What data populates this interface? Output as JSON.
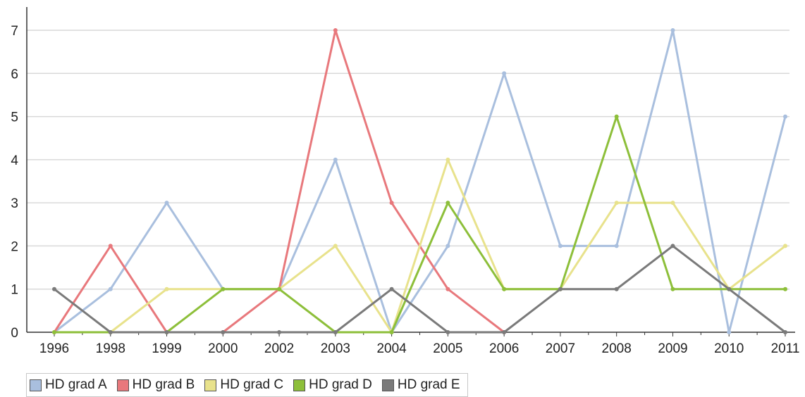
{
  "chart_data": {
    "type": "line",
    "categories": [
      "1996",
      "1998",
      "1999",
      "2000",
      "2002",
      "2003",
      "2004",
      "2005",
      "2006",
      "2007",
      "2008",
      "2009",
      "2010",
      "2011"
    ],
    "ylim": [
      0,
      7
    ],
    "yticks": [
      0,
      1,
      2,
      3,
      4,
      5,
      6,
      7
    ],
    "grid": true,
    "legend_position": "bottom-left",
    "series": [
      {
        "name": "HD grad A",
        "color": "#a9bfde",
        "values": [
          0,
          1,
          3,
          1,
          1,
          4,
          0,
          2,
          6,
          2,
          2,
          7,
          0,
          5
        ]
      },
      {
        "name": "HD grad B",
        "color": "#e8787c",
        "values": [
          0,
          2,
          0,
          0,
          1,
          7,
          3,
          1,
          0,
          null,
          null,
          null,
          null,
          null
        ]
      },
      {
        "name": "HD grad C",
        "color": "#e8e28c",
        "values": [
          0,
          0,
          1,
          1,
          1,
          2,
          0,
          4,
          1,
          1,
          3,
          3,
          1,
          2
        ]
      },
      {
        "name": "HD grad D",
        "color": "#8dbf3a",
        "values": [
          0,
          0,
          0,
          1,
          1,
          0,
          0,
          3,
          1,
          1,
          5,
          1,
          1,
          1
        ]
      },
      {
        "name": "HD grad E",
        "color": "#7a7a7a",
        "values": [
          1,
          0,
          0,
          0,
          0,
          0,
          1,
          0,
          0,
          1,
          1,
          2,
          1,
          0
        ]
      }
    ]
  }
}
